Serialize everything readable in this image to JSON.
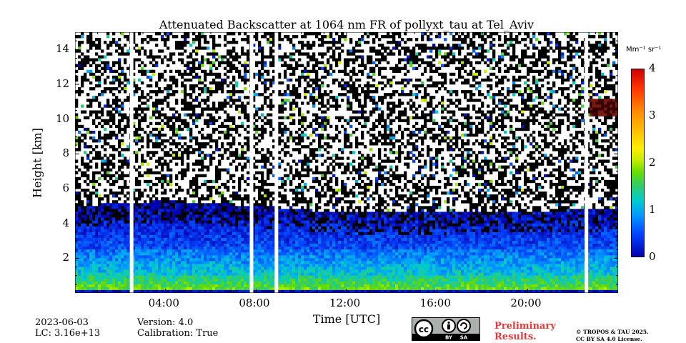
{
  "chart_data": {
    "type": "heatmap",
    "title": "Attenuated Backscatter at 1064 nm FR of pollyxt_tau at Tel_Aviv",
    "xlabel": "Time [UTC]",
    "ylabel": "Height [km]",
    "x_ticks": [
      "04:00",
      "08:00",
      "12:00",
      "16:00",
      "20:00"
    ],
    "x_tick_hours": [
      4,
      8,
      12,
      16,
      20
    ],
    "x_range_hours": [
      0,
      24
    ],
    "y_ticks": [
      "2",
      "4",
      "6",
      "8",
      "10",
      "12",
      "14"
    ],
    "y_tick_values": [
      2,
      4,
      6,
      8,
      10,
      12,
      14
    ],
    "y_range_km": [
      0,
      15
    ],
    "colorbar": {
      "unit": "Mm⁻¹ sr⁻¹",
      "ticks": [
        "0",
        "1",
        "2",
        "3",
        "4"
      ],
      "range": [
        0,
        4
      ]
    },
    "data_gaps_hours": [
      2.5,
      7.8,
      8.9,
      22.6
    ],
    "boundary_layer_top_km": {
      "hours": [
        0,
        4,
        8,
        12,
        16,
        20,
        24
      ],
      "values": [
        5.0,
        5.3,
        5.0,
        4.6,
        4.6,
        4.7,
        4.8
      ]
    },
    "cloud_layer": {
      "height_km": 10.7,
      "start_hour": 22.7,
      "end_hour": 24
    }
  },
  "footer": {
    "date": "2023-06-03",
    "lc": "LC: 3.16e+13",
    "version": "Version: 4.0",
    "calibration": "Calibration: True",
    "prelim_line1": "Preliminary",
    "prelim_line2": "Results.",
    "copyright_line1": "© TROPOS & TAU 2025.",
    "copyright_line2": "CC BY SA 4.0 License.",
    "logo_by": "BY",
    "logo_sa": "SA"
  },
  "colors": {
    "gap": "#ffffff",
    "low": "#0000aa",
    "high": "#cc0000"
  }
}
